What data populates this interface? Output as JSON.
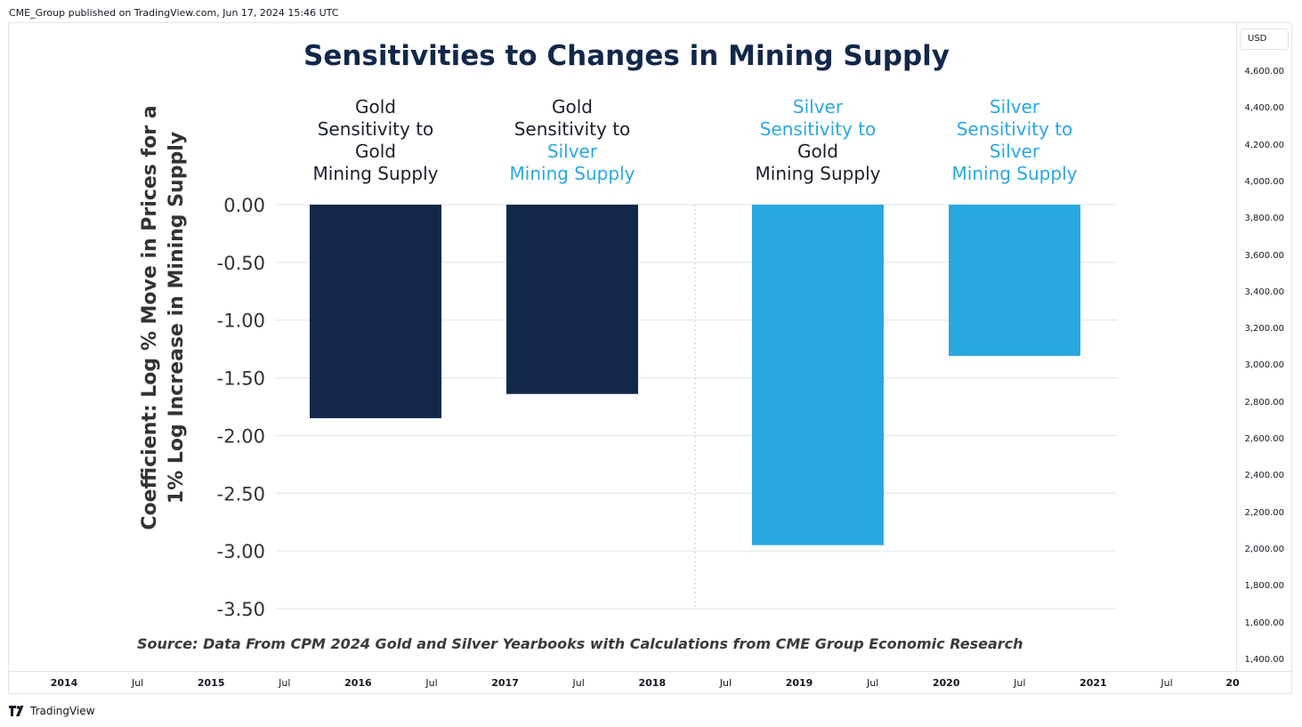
{
  "header": {
    "published": "CME_Group published on TradingView.com, Jun 17, 2024 15:46 UTC"
  },
  "price_axis": {
    "currency": "USD",
    "ticks": [
      "4,600.00",
      "4,400.00",
      "4,200.00",
      "4,000.00",
      "3,800.00",
      "3,600.00",
      "3,400.00",
      "3,200.00",
      "3,000.00",
      "2,800.00",
      "2,600.00",
      "2,400.00",
      "2,200.00",
      "2,000.00",
      "1,800.00",
      "1,600.00",
      "1,400.00"
    ]
  },
  "time_axis": {
    "ticks": [
      {
        "label": "2014",
        "year": true
      },
      {
        "label": "Jul",
        "year": false
      },
      {
        "label": "2015",
        "year": true
      },
      {
        "label": "Jul",
        "year": false
      },
      {
        "label": "2016",
        "year": true
      },
      {
        "label": "Jul",
        "year": false
      },
      {
        "label": "2017",
        "year": true
      },
      {
        "label": "Jul",
        "year": false
      },
      {
        "label": "2018",
        "year": true
      },
      {
        "label": "Jul",
        "year": false
      },
      {
        "label": "2019",
        "year": true
      },
      {
        "label": "Jul",
        "year": false
      },
      {
        "label": "2020",
        "year": true
      },
      {
        "label": "Jul",
        "year": false
      },
      {
        "label": "2021",
        "year": true
      },
      {
        "label": "Jul",
        "year": false
      },
      {
        "label": "20",
        "year": true
      }
    ]
  },
  "brand": {
    "name": "TradingView"
  },
  "colors": {
    "gold": "#12284a",
    "silver": "#29a8e0",
    "grid": "#e3e3e3",
    "text": "#1a2a40"
  },
  "chart_data": {
    "type": "bar",
    "title": "Sensitivities to Changes in Mining Supply",
    "ylabel": [
      "Coefficient: Log % Move in Prices for a",
      "1% Log Increase in Mining Supply"
    ],
    "xlabel": "",
    "ylim": [
      -3.5,
      0
    ],
    "yticks": [
      0,
      -0.5,
      -1,
      -1.5,
      -2,
      -2.5,
      -3,
      -3.5
    ],
    "ytick_labels": [
      "0.00",
      "-0.50",
      "-1.00",
      "-1.50",
      "-2.00",
      "-2.50",
      "-3.00",
      "-3.50"
    ],
    "grid": true,
    "categories": [
      [
        {
          "text": "Gold",
          "tone": "gold"
        },
        {
          "text": "Sensitivity to",
          "tone": "gold"
        },
        {
          "text": "Gold",
          "tone": "gold"
        },
        {
          "text": "Mining Supply",
          "tone": "gold"
        }
      ],
      [
        {
          "text": "Gold",
          "tone": "gold"
        },
        {
          "text": "Sensitivity to",
          "tone": "gold"
        },
        {
          "text": "Silver",
          "tone": "silver"
        },
        {
          "text": "Mining Supply",
          "tone": "silver"
        }
      ],
      [
        {
          "text": "Silver",
          "tone": "silver"
        },
        {
          "text": "Sensitivity to",
          "tone": "silver"
        },
        {
          "text": "Gold",
          "tone": "gold"
        },
        {
          "text": "Mining Supply",
          "tone": "gold"
        }
      ],
      [
        {
          "text": "Silver",
          "tone": "silver"
        },
        {
          "text": "Sensitivity to",
          "tone": "silver"
        },
        {
          "text": "Silver",
          "tone": "silver"
        },
        {
          "text": "Mining Supply",
          "tone": "silver"
        }
      ]
    ],
    "values": [
      -1.85,
      -1.64,
      -2.95,
      -1.31
    ],
    "bar_tones": [
      "gold",
      "gold",
      "silver",
      "silver"
    ],
    "source": "Source: Data From CPM 2024 Gold and Silver Yearbooks with Calculations from CME Group Economic Research"
  }
}
